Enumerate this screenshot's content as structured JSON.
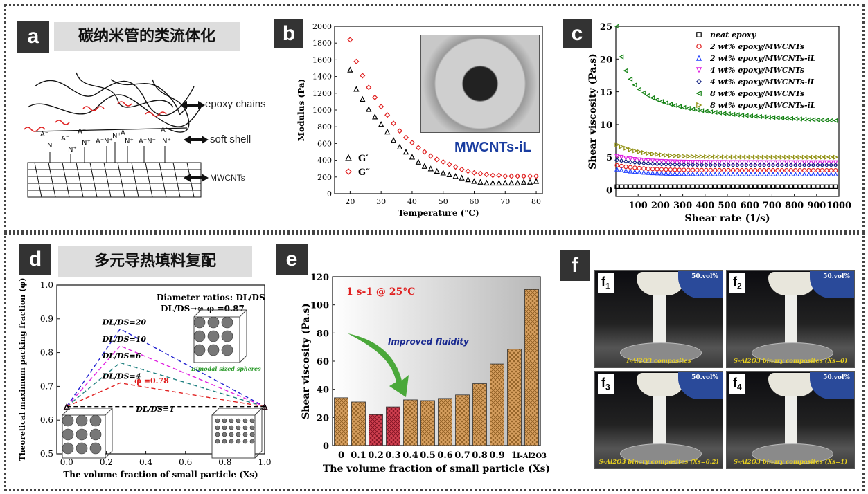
{
  "panels": {
    "a": {
      "tag": "a",
      "title": "碳纳米管的类流体化",
      "labels": {
        "chains": "epoxy chains",
        "shell": "soft shell",
        "tubes": "MWCNTs"
      }
    },
    "b": {
      "tag": "b",
      "photo_label": "MWCNTs-iL"
    },
    "c": {
      "tag": "c"
    },
    "d": {
      "tag": "d",
      "title": "多元导热填料复配"
    },
    "e": {
      "tag": "e"
    },
    "f": {
      "tag": "f",
      "photos": [
        {
          "id": "f1",
          "sub": "1",
          "vol": "50.vol%",
          "caption": "I-Al2O3 composites"
        },
        {
          "id": "f2",
          "sub": "2",
          "vol": "50.vol%",
          "caption": "S-Al2O3 binary composites (Xs=0)"
        },
        {
          "id": "f3",
          "sub": "3",
          "vol": "50.vol%",
          "caption": "S-Al2O3 binary composites (Xs=0.2)"
        },
        {
          "id": "f4",
          "sub": "4",
          "vol": "50.vol%",
          "caption": "S-Al2O3 binary composites (Xs=1)"
        }
      ]
    }
  },
  "chart_data": [
    {
      "panel": "b",
      "type": "scatter",
      "xlabel": "Temperature (°C)",
      "ylabel": "Modulus (Pa)",
      "xlim": [
        15,
        82
      ],
      "ylim": [
        0,
        2000
      ],
      "xticks": [
        20,
        30,
        40,
        50,
        60,
        70,
        80
      ],
      "yticks": [
        0,
        200,
        400,
        600,
        800,
        1000,
        1200,
        1400,
        1600,
        1800,
        2000
      ],
      "x": [
        20,
        22,
        24,
        26,
        28,
        30,
        32,
        34,
        36,
        38,
        40,
        42,
        44,
        46,
        48,
        50,
        52,
        54,
        56,
        58,
        60,
        62,
        64,
        66,
        68,
        70,
        72,
        74,
        76,
        78,
        80
      ],
      "series": [
        {
          "name": "G′",
          "marker": "triangle",
          "color": "#000000",
          "values": [
            1480,
            1250,
            1130,
            1010,
            920,
            830,
            740,
            640,
            560,
            500,
            440,
            380,
            330,
            300,
            270,
            250,
            230,
            210,
            190,
            170,
            150,
            140,
            130,
            130,
            130,
            130,
            130,
            130,
            140,
            140,
            150
          ]
        },
        {
          "name": "G″",
          "marker": "diamond",
          "color": "#e02020",
          "values": [
            1840,
            1580,
            1410,
            1270,
            1150,
            1040,
            940,
            840,
            750,
            670,
            610,
            550,
            500,
            450,
            410,
            380,
            350,
            320,
            290,
            270,
            250,
            240,
            230,
            220,
            220,
            210,
            210,
            210,
            210,
            210,
            210
          ]
        }
      ]
    },
    {
      "panel": "c",
      "type": "scatter",
      "xlabel": "Shear rate (1/s)",
      "ylabel": "Shear viscosity (Pa.s)",
      "xlim": [
        0,
        1000
      ],
      "ylim": [
        -1,
        25
      ],
      "xticks": [
        100,
        200,
        300,
        400,
        500,
        600,
        700,
        800,
        900,
        1000
      ],
      "yticks": [
        0,
        5,
        10,
        15,
        20,
        25
      ],
      "series": [
        {
          "name": "neat epoxy",
          "color": "#000000",
          "marker": "square",
          "start": 0.5,
          "end": 0.5
        },
        {
          "name": "2 wt% epoxy/MWCNTs",
          "color": "#e02020",
          "marker": "circle",
          "start": 3.8,
          "end": 3.0
        },
        {
          "name": "2 wt% epoxy/MWCNTs-iL",
          "color": "#2040ff",
          "marker": "triangle",
          "start": 3.2,
          "end": 2.4
        },
        {
          "name": "4 wt% epoxy/MWCNTs",
          "color": "#e020e0",
          "marker": "triangle-down",
          "start": 5.2,
          "end": 4.2
        },
        {
          "name": "4 wt% epoxy/MWCNTs-iL",
          "color": "#102080",
          "marker": "diamond",
          "start": 4.6,
          "end": 3.8
        },
        {
          "name": "8 wt% epoxy/MWCNTs",
          "color": "#108010",
          "marker": "triangle-left",
          "start": 25,
          "end": 7.6
        },
        {
          "name": "8 wt% epoxy/MWCNTs-iL",
          "color": "#909010",
          "marker": "triangle-right",
          "start": 7.0,
          "end": 5.0
        }
      ]
    },
    {
      "panel": "d",
      "type": "line",
      "xlabel": "The volume fraction of small particle (Xs)",
      "ylabel": "Theoretical maximum packing fraction (φ)",
      "xlim": [
        -0.05,
        1.0
      ],
      "ylim": [
        0.5,
        1.0
      ],
      "xticks": [
        0.0,
        0.2,
        0.4,
        0.6,
        0.8,
        1.0
      ],
      "yticks": [
        0.5,
        0.6,
        0.7,
        0.8,
        0.9,
        1.0
      ],
      "series": [
        {
          "name": "DL/DS=20",
          "color": "#2020d0",
          "x": [
            0,
            0.27,
            1.0
          ],
          "values": [
            0.64,
            0.87,
            0.64
          ]
        },
        {
          "name": "DL/DS=10",
          "color": "#e020e0",
          "x": [
            0,
            0.27,
            1.0
          ],
          "values": [
            0.64,
            0.82,
            0.64
          ]
        },
        {
          "name": "DL/DS=6",
          "color": "#208080",
          "x": [
            0,
            0.27,
            1.0
          ],
          "values": [
            0.64,
            0.77,
            0.64
          ]
        },
        {
          "name": "DL/DS=4",
          "color": "#e02020",
          "x": [
            0,
            0.27,
            1.0
          ],
          "values": [
            0.64,
            0.71,
            0.64
          ]
        },
        {
          "name": "DL/DS=1",
          "color": "#000000",
          "x": [
            0,
            1.0
          ],
          "values": [
            0.64,
            0.64
          ]
        }
      ],
      "annotations": [
        "Diameter ratios: DL/DS",
        "DL/DS→∞  φ =0.87",
        "φ =0.78",
        "Bimodal sized spheres"
      ]
    },
    {
      "panel": "e",
      "type": "bar",
      "xlabel": "The volume fraction of small particle (Xs)",
      "ylabel": "Shear viscosity (Pa.s)",
      "ylim": [
        0,
        120
      ],
      "yticks": [
        0,
        20,
        40,
        60,
        80,
        100,
        120
      ],
      "categories": [
        "0",
        "0.1",
        "0.2",
        "0.3",
        "0.4",
        "0.5",
        "0.6",
        "0.7",
        "0.8",
        "0.9",
        "1",
        "I-Al2O3"
      ],
      "values": [
        34,
        31,
        22,
        27.5,
        32.5,
        32,
        33.5,
        36,
        44,
        58,
        68.5,
        111
      ],
      "highlight": [
        2,
        3
      ],
      "annotations": [
        "1 s-1 @ 25°C",
        "Improved fluidity"
      ]
    }
  ]
}
